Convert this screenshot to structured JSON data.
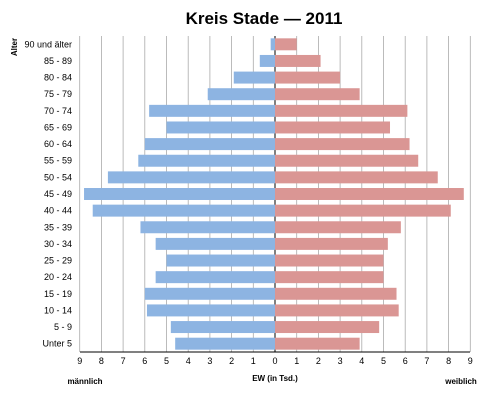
{
  "chart_data": {
    "type": "bar",
    "orientation": "horizontal",
    "layout": "population-pyramid",
    "title": "Kreis Stade — 2011",
    "ylabel": "Alter",
    "xlabel": "EW (in Tsd.)",
    "left_label": "männlich",
    "right_label": "weiblich",
    "xlim": [
      0,
      9
    ],
    "x_ticks": [
      "9",
      "8",
      "7",
      "6",
      "5",
      "4",
      "3",
      "2",
      "1",
      "0",
      "1",
      "2",
      "3",
      "4",
      "5",
      "6",
      "7",
      "8",
      "9"
    ],
    "grid": true,
    "categories": [
      "90 und älter",
      "85 - 89",
      "80 - 84",
      "75 - 79",
      "70 - 74",
      "65 - 69",
      "60 - 64",
      "55 - 59",
      "50 - 54",
      "45 - 49",
      "40 - 44",
      "35 - 39",
      "30 - 34",
      "25 - 29",
      "20 - 24",
      "15 - 19",
      "10 - 14",
      "5 - 9",
      "Unter 5"
    ],
    "series": [
      {
        "name": "männlich",
        "color": "#8db4e2",
        "values": [
          0.2,
          0.7,
          1.9,
          3.1,
          5.8,
          5.0,
          6.0,
          6.3,
          7.7,
          8.8,
          8.4,
          6.2,
          5.5,
          5.0,
          5.5,
          6.0,
          5.9,
          4.8,
          4.6
        ]
      },
      {
        "name": "weiblich",
        "color": "#da9694",
        "values": [
          1.0,
          2.1,
          3.0,
          3.9,
          6.1,
          5.3,
          6.2,
          6.6,
          7.5,
          8.7,
          8.1,
          5.8,
          5.2,
          5.0,
          5.0,
          5.6,
          5.7,
          4.8,
          3.9
        ]
      }
    ]
  }
}
